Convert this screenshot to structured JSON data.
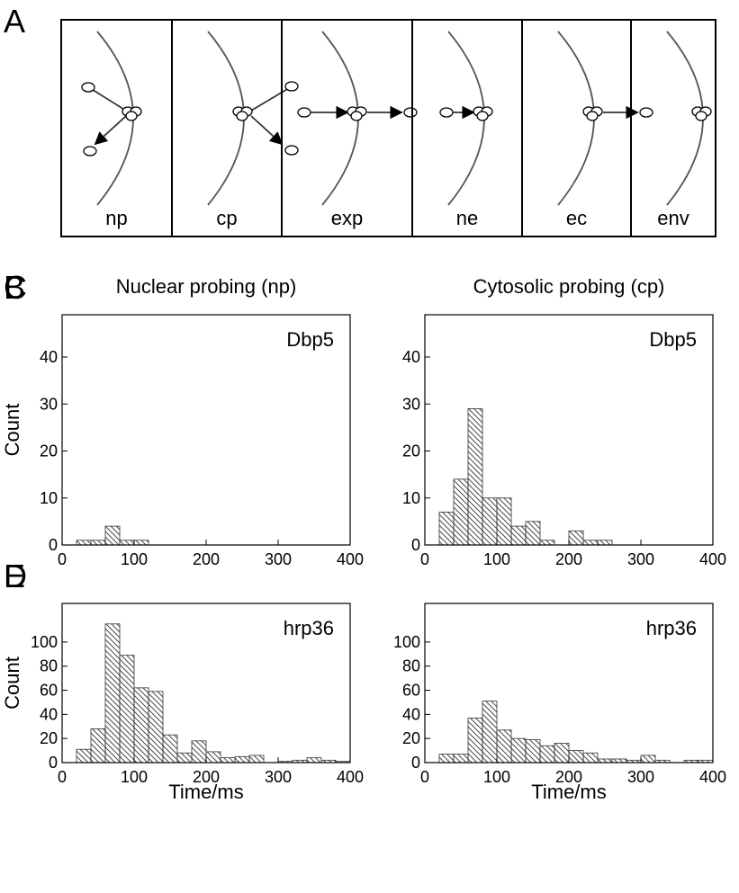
{
  "panel_a": {
    "letter": "A",
    "labels": [
      "np",
      "cp",
      "exp",
      "ne",
      "ec",
      "env"
    ]
  },
  "chart_data": [
    {
      "type": "histogram",
      "panel": "B",
      "title": "Nuclear probing (np)",
      "annotation": "Dbp5",
      "ylabel": "Count",
      "bins": [
        20,
        40,
        60,
        80,
        100,
        120,
        140,
        160,
        180,
        200,
        220,
        240,
        260,
        280,
        300,
        320,
        340,
        360,
        380,
        400
      ],
      "values": [
        1,
        1,
        4,
        1,
        1,
        0,
        0,
        0,
        0,
        0,
        0,
        0,
        0,
        0,
        0,
        0,
        0,
        0,
        0
      ],
      "xlim": [
        0,
        400
      ],
      "xticks": [
        0,
        100,
        200,
        300,
        400
      ],
      "ylim": [
        0,
        49
      ],
      "yticks": [
        0,
        10,
        20,
        30,
        40
      ]
    },
    {
      "type": "histogram",
      "panel": "C",
      "title": "Cytosolic probing (cp)",
      "annotation": "Dbp5",
      "bins": [
        20,
        40,
        60,
        80,
        100,
        120,
        140,
        160,
        180,
        200,
        220,
        240,
        260,
        280,
        300,
        320,
        340,
        360,
        380,
        400
      ],
      "values": [
        7,
        14,
        29,
        10,
        10,
        4,
        5,
        1,
        0,
        3,
        1,
        1,
        0,
        0,
        0,
        0,
        0,
        0,
        0
      ],
      "xlim": [
        0,
        400
      ],
      "xticks": [
        0,
        100,
        200,
        300,
        400
      ],
      "ylim": [
        0,
        49
      ],
      "yticks": [
        0,
        10,
        20,
        30,
        40
      ]
    },
    {
      "type": "histogram",
      "panel": "D",
      "annotation": "hrp36",
      "ylabel": "Count",
      "xlabel": "Time/ms",
      "bins": [
        20,
        40,
        60,
        80,
        100,
        120,
        140,
        160,
        180,
        200,
        220,
        240,
        260,
        280,
        300,
        320,
        340,
        360,
        380,
        400
      ],
      "values": [
        11,
        28,
        115,
        89,
        62,
        59,
        23,
        8,
        18,
        9,
        4,
        5,
        6,
        0,
        1,
        2,
        4,
        2,
        1
      ],
      "xlim": [
        0,
        400
      ],
      "xticks": [
        0,
        100,
        200,
        300,
        400
      ],
      "ylim": [
        0,
        132
      ],
      "yticks": [
        0,
        20,
        40,
        60,
        80,
        100
      ]
    },
    {
      "type": "histogram",
      "panel": "E",
      "annotation": "hrp36",
      "xlabel": "Time/ms",
      "bins": [
        20,
        40,
        60,
        80,
        100,
        120,
        140,
        160,
        180,
        200,
        220,
        240,
        260,
        280,
        300,
        320,
        340,
        360,
        380,
        400
      ],
      "values": [
        7,
        7,
        37,
        51,
        27,
        20,
        19,
        14,
        16,
        10,
        8,
        3,
        3,
        2,
        6,
        2,
        0,
        2,
        2
      ],
      "xlim": [
        0,
        400
      ],
      "xticks": [
        0,
        100,
        200,
        300,
        400
      ],
      "ylim": [
        0,
        132
      ],
      "yticks": [
        0,
        20,
        40,
        60,
        80,
        100
      ]
    }
  ]
}
